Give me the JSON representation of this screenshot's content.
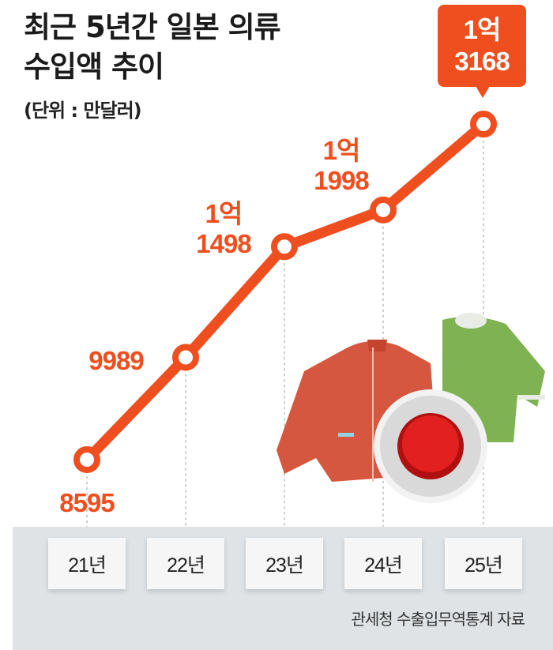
{
  "title_line1": "최근 5년간 일본 의류",
  "title_line2": "수입액 추이",
  "unit": "(단위 : 만달러)",
  "source": "관세청 수출입무역통계 자료",
  "colors": {
    "line": "#ef4e1f",
    "band": "#dfe3e6"
  },
  "chart_data": {
    "type": "line",
    "title": "최근 5년간 일본 의류 수입액 추이",
    "unit": "만달러",
    "categories": [
      "21년",
      "22년",
      "23년",
      "24년",
      "25년"
    ],
    "values": [
      8595,
      9989,
      11498,
      11998,
      13168
    ],
    "data_labels": [
      {
        "top": "",
        "bottom": "8595"
      },
      {
        "top": "",
        "bottom": "9989"
      },
      {
        "top": "1억",
        "bottom": "1498"
      },
      {
        "top": "1억",
        "bottom": "1998"
      },
      {
        "top": "1억",
        "bottom": "3168"
      }
    ],
    "grid": false
  }
}
